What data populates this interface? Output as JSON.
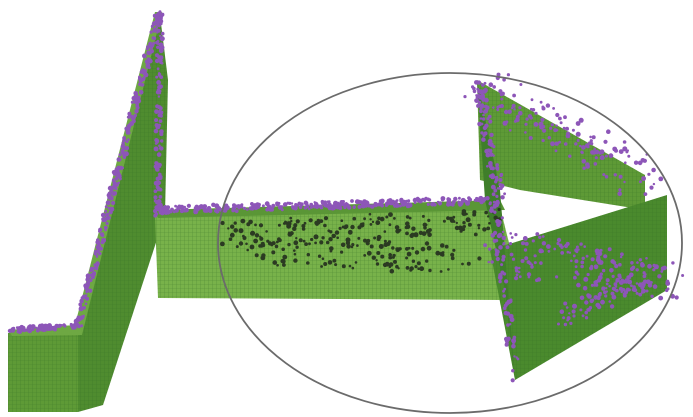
{
  "colors": {
    "background": "#ffffff",
    "wall_face_light": "#79b24a",
    "wall_face_mid": "#5e9a36",
    "wall_face_dark": "#3f7e2a",
    "wall_edge": "#2f6a22",
    "particle_purple": "#8d56b8",
    "particle_dark": "#2b3a22",
    "ellipse_stroke": "#6b6b6b"
  },
  "scene": {
    "description_icons": [
      "green-wall-segment",
      "purple-particle-cloud",
      "highlight-ellipse"
    ]
  }
}
